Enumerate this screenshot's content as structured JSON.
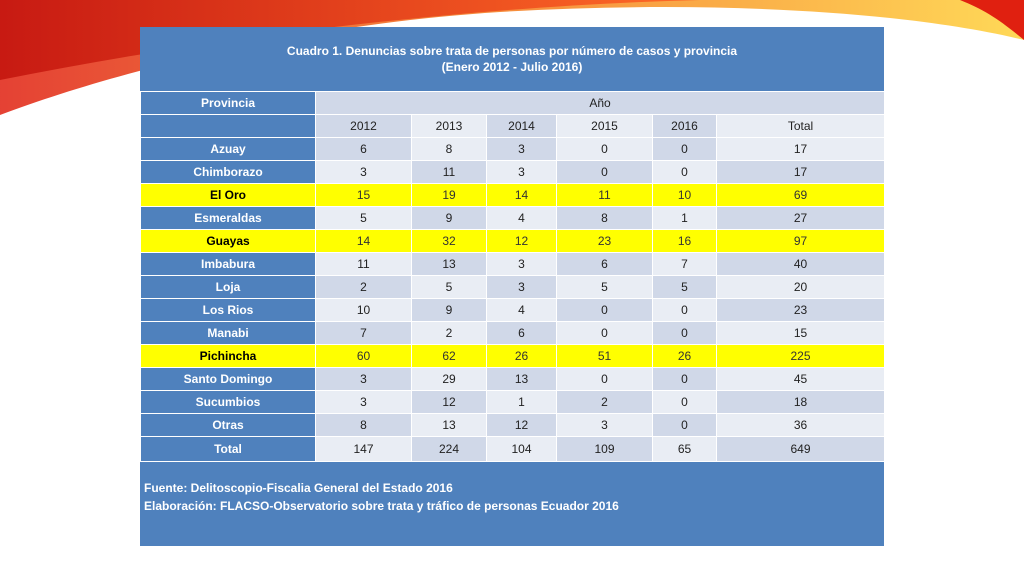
{
  "title": [
    "Cuadro  1. Denuncias sobre trata de personas por número de casos y provincia",
    "(Enero 2012 - Julio 2016)"
  ],
  "header": {
    "province": "Provincia",
    "year": "Año",
    "columns": [
      "2012",
      "2013",
      "2014",
      "2015",
      "2016",
      "Total"
    ]
  },
  "rows": [
    {
      "name": "Azuay",
      "values": [
        6,
        8,
        3,
        0,
        0,
        17
      ],
      "highlight": false
    },
    {
      "name": "Chimborazo",
      "values": [
        3,
        11,
        3,
        0,
        0,
        17
      ],
      "highlight": false
    },
    {
      "name": "El Oro",
      "values": [
        15,
        19,
        14,
        11,
        10,
        69
      ],
      "highlight": true
    },
    {
      "name": "Esmeraldas",
      "values": [
        5,
        9,
        4,
        8,
        1,
        27
      ],
      "highlight": false
    },
    {
      "name": "Guayas",
      "values": [
        14,
        32,
        12,
        23,
        16,
        97
      ],
      "highlight": true
    },
    {
      "name": "Imbabura",
      "values": [
        11,
        13,
        3,
        6,
        7,
        40
      ],
      "highlight": false
    },
    {
      "name": "Loja",
      "values": [
        2,
        5,
        3,
        5,
        5,
        20
      ],
      "highlight": false
    },
    {
      "name": "Los Rios",
      "values": [
        10,
        9,
        4,
        0,
        0,
        23
      ],
      "highlight": false
    },
    {
      "name": "Manabi",
      "values": [
        7,
        2,
        6,
        0,
        0,
        15
      ],
      "highlight": false
    },
    {
      "name": "Pichincha",
      "values": [
        60,
        62,
        26,
        51,
        26,
        225
      ],
      "highlight": true
    },
    {
      "name": "Santo Domingo",
      "values": [
        3,
        29,
        13,
        0,
        0,
        45
      ],
      "highlight": false
    },
    {
      "name": "Sucumbios",
      "values": [
        3,
        12,
        1,
        2,
        0,
        18
      ],
      "highlight": false
    },
    {
      "name": "Otras",
      "values": [
        8,
        13,
        12,
        3,
        0,
        36
      ],
      "highlight": false
    }
  ],
  "total": {
    "name": "Total",
    "values": [
      147,
      224,
      104,
      109,
      65,
      649
    ]
  },
  "footer": [
    "Fuente: Delitoscopio-Fiscalia General del Estado 2016",
    "Elaboración: FLACSO-Observatorio sobre trata y tráfico  de personas Ecuador 2016"
  ]
}
